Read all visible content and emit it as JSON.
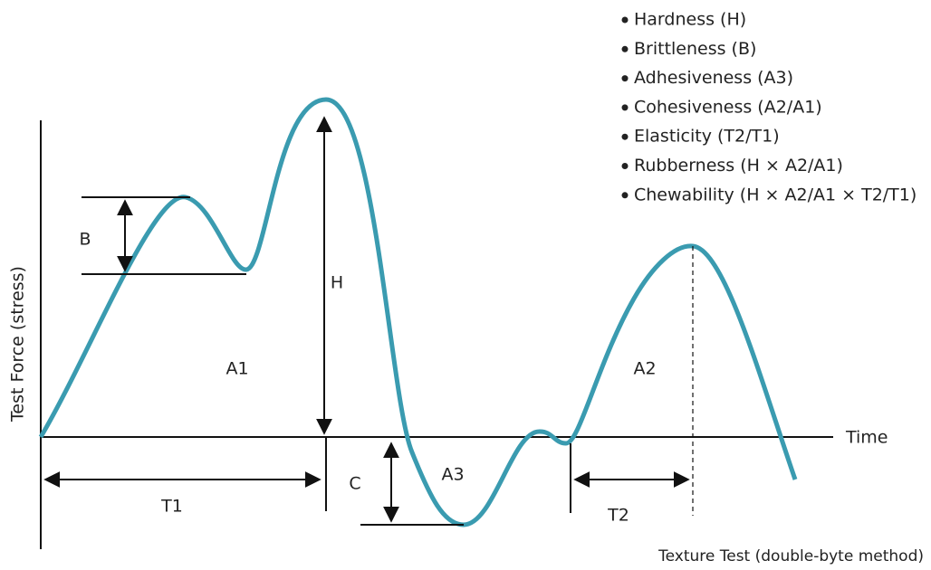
{
  "axis": {
    "y_label": "Test Force (stress)",
    "x_label": "Time"
  },
  "labels": {
    "B": "B",
    "H": "H",
    "A1": "A1",
    "C": "C",
    "A3": "A3",
    "T1": "T1",
    "A2": "A2",
    "T2": "T2"
  },
  "legend": [
    "Hardness (H)",
    "Brittleness (B)",
    "Adhesiveness (A3)",
    "Cohesiveness (A2/A1)",
    "Elasticity (T2/T1)",
    "Rubberness (H × A2/A1)",
    "Chewability (H × A2/A1 × T2/T1)"
  ],
  "caption": "Texture Test (double-byte method)"
}
